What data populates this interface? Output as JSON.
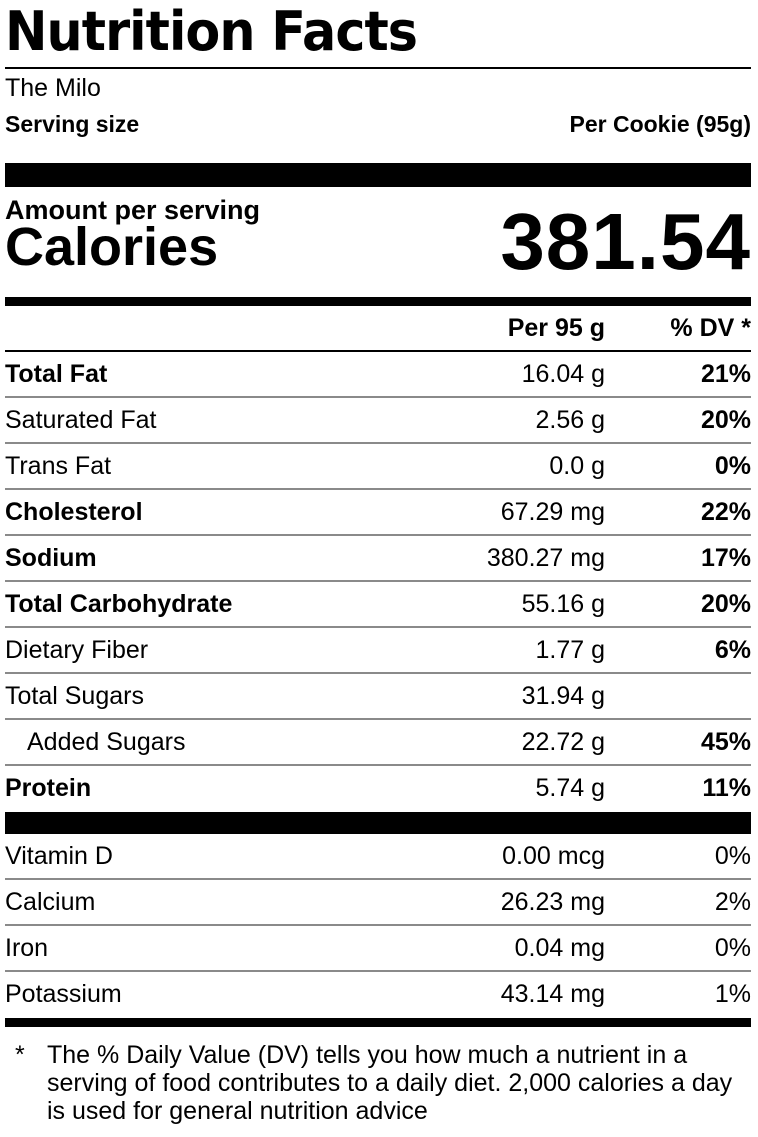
{
  "label": {
    "title": "Nutrition Facts",
    "product_name": "The Milo",
    "serving_size_label": "Serving size",
    "serving_size_value": "Per Cookie (95g)",
    "amount_per_serving": "Amount per serving",
    "calories_label": "Calories",
    "calories_value": "381.54",
    "col_amount": "Per 95 g",
    "col_dv": "% DV *"
  },
  "nutrients": [
    {
      "name": "Total Fat",
      "amount": "16.04 g",
      "dv": "21%"
    },
    {
      "name": "Saturated Fat",
      "amount": "2.56 g",
      "dv": "20%"
    },
    {
      "name": "Trans Fat",
      "amount": "0.0 g",
      "dv": "0%"
    },
    {
      "name": "Cholesterol",
      "amount": "67.29 mg",
      "dv": "22%"
    },
    {
      "name": "Sodium",
      "amount": "380.27 mg",
      "dv": "17%"
    },
    {
      "name": "Total Carbohydrate",
      "amount": "55.16 g",
      "dv": "20%"
    },
    {
      "name": "Dietary Fiber",
      "amount": "1.77 g",
      "dv": "6%"
    },
    {
      "name": "Total Sugars",
      "amount": "31.94 g",
      "dv": ""
    },
    {
      "name": "Added Sugars",
      "amount": "22.72 g",
      "dv": "45%"
    },
    {
      "name": "Protein",
      "amount": "5.74 g",
      "dv": "11%"
    }
  ],
  "vitamins": [
    {
      "name": "Vitamin D",
      "amount": "0.00 mcg",
      "dv": "0%"
    },
    {
      "name": "Calcium",
      "amount": "26.23 mg",
      "dv": "2%"
    },
    {
      "name": "Iron",
      "amount": "0.04 mg",
      "dv": "0%"
    },
    {
      "name": "Potassium",
      "amount": "43.14 mg",
      "dv": "1%"
    }
  ],
  "footnote": {
    "star": "*",
    "text": "The % Daily Value (DV) tells you how much a nutrient in a serving of food contributes to a daily diet. 2,000 calories a day is used for general nutrition advice"
  }
}
